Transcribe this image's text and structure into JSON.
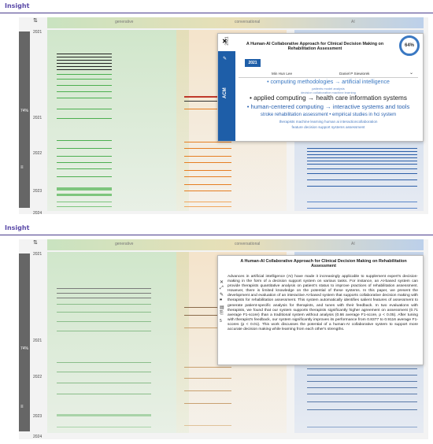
{
  "brand": "Insight",
  "columns": [
    "generative",
    "conversational",
    "AI"
  ],
  "sort_icon": "sort-numeric-icon",
  "years": [
    "2021",
    "2021",
    "2022",
    "2023",
    "2024"
  ],
  "rail_pct": "74%",
  "rail_icon": "list-icon",
  "popup1": {
    "title": "A Human-AI Collaborative Approach for Clinical Decision Making on Rehabilitation Assessment",
    "percent": "64%",
    "year": "2021",
    "authors": [
      "Min Hun Lee",
      "Daniel P Siewiorek"
    ],
    "publisher": "ACM",
    "keywords": {
      "k1": "• computing methodologies → artificial intelligence",
      "k2": "patients   model   analysis",
      "k3": "decision   collaborative   machine learning",
      "k4": "• applied computing → health care information systems",
      "k5": "• human-centered computing → interactive systems and tools",
      "k6": "stroke rehabilitation assessment   • empirical studies in hci   system",
      "k7": "therapists   machine learning human ai interactioncollaboration",
      "k8": "feature   decision support systems   assessment"
    }
  },
  "popup2": {
    "title": "A Human-AI Collaborative Approach for Clinical Decision Making on Rehabilitation Assessment",
    "abstract": "Advances in artificial intelligence (AI) have made it increasingly applicable to supplement expert's decision-making in the form of a decision support system on various tasks. For instance, an AI-based system can provide therapists quantitative analysis on patient's status to improve practices of rehabilitation assessment. However, there is limited knowledge on the potential of these systems. In this paper, we present the development and evaluation of an interactive AI-based system that supports collaborative decision making with therapists for rehabilitation assessment. This system automatically identifies salient features of assessment to generate patient-specific analysis for therapists, and tunes with their feedback. In two evaluations with therapists, we found that our system supports therapists significantly higher agreement on assessment (0.71 average F1-score) than a traditional system without analysis (0.66 average F1-score, p < 0.05). After tuning with therapist's feedback, our system significantly improves its performance from 0.8377 to 0.9116 average F1-scores (p < 0.01). This work discusses the potential of a human-AI collaborative system to support more accurate decision making while learning from each other's strengths."
  }
}
